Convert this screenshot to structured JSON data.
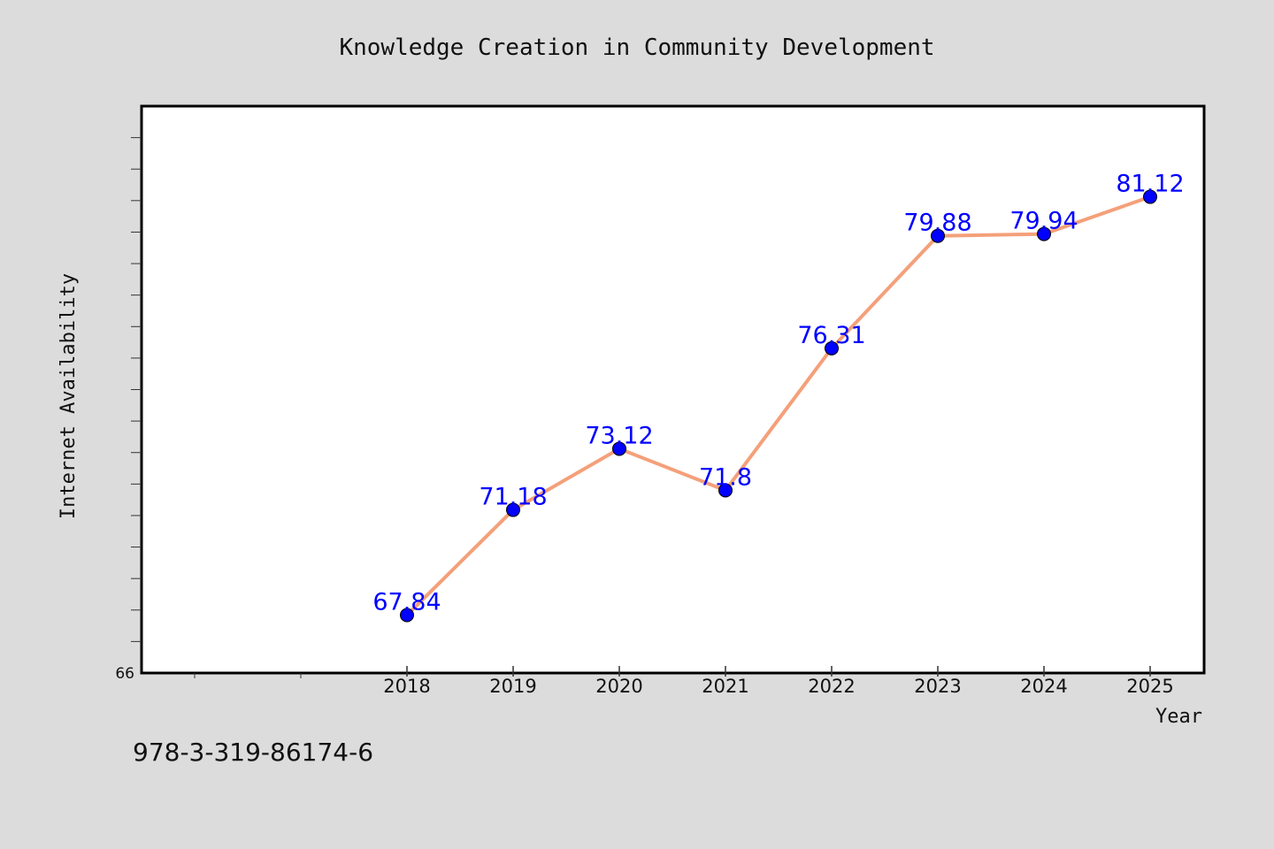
{
  "chart_data": {
    "type": "line",
    "title": "Knowledge Creation in Community Development",
    "xlabel": "Year",
    "ylabel": "Internet Availability",
    "x": [
      "2018",
      "2019",
      "2020",
      "2021",
      "2022",
      "2023",
      "2024",
      "2025"
    ],
    "series": [
      {
        "values": [
          67.84,
          71.18,
          73.12,
          71.8,
          76.31,
          79.88,
          79.94,
          81.12
        ],
        "data_labels": [
          "67.84",
          "71.18",
          "73.12",
          "71.8",
          "76.31",
          "79.88",
          "79.94",
          "81.12"
        ],
        "line_color": "#f4a07a",
        "marker_color": "#0000ff",
        "label_color": "#0000ff"
      }
    ],
    "x_axis_start_year": 2015.5,
    "ylim": [
      66,
      84
    ],
    "y_tick_labels": [
      "66"
    ],
    "grid": false,
    "legend": "none"
  },
  "caption": "978-3-319-86174-6",
  "colors": {
    "background": "#dcdcdc",
    "plot_background": "#ffffff",
    "frame": "#000000"
  }
}
